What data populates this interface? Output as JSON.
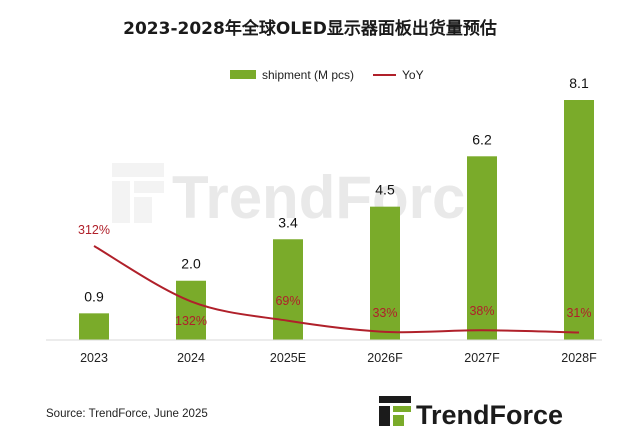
{
  "chart_data": {
    "type": "bar",
    "title": "2023-2028年全球OLED显示器面板出货量预估",
    "categories": [
      "2023",
      "2024",
      "2025E",
      "2026F",
      "2027F",
      "2028F"
    ],
    "series": [
      {
        "name": "shipment (M pcs)",
        "type": "bar",
        "values": [
          0.9,
          2.0,
          3.4,
          4.5,
          6.2,
          8.1
        ],
        "color": "#7aab2a"
      },
      {
        "name": "YoY",
        "type": "line",
        "values": [
          312,
          132,
          69,
          33,
          38,
          31
        ],
        "value_labels": [
          "312%",
          "132%",
          "69%",
          "33%",
          "38%",
          "31%"
        ],
        "color": "#b0202a"
      }
    ],
    "value_labels": [
      "0.9",
      "2.0",
      "3.4",
      "4.5",
      "6.2",
      "8.1"
    ],
    "ylim": [
      0,
      8.1
    ],
    "yoy_range_percent": [
      0,
      312
    ],
    "legend_position": "top-center",
    "grid": false
  },
  "source": "Source: TrendForce, June 2025",
  "watermark": "TrendForce",
  "brand": "TrendForce",
  "colors": {
    "bar": "#7aab2a",
    "line": "#b0202a",
    "logo_accent": "#7aab2a",
    "logo_dark": "#1b1b1b"
  }
}
